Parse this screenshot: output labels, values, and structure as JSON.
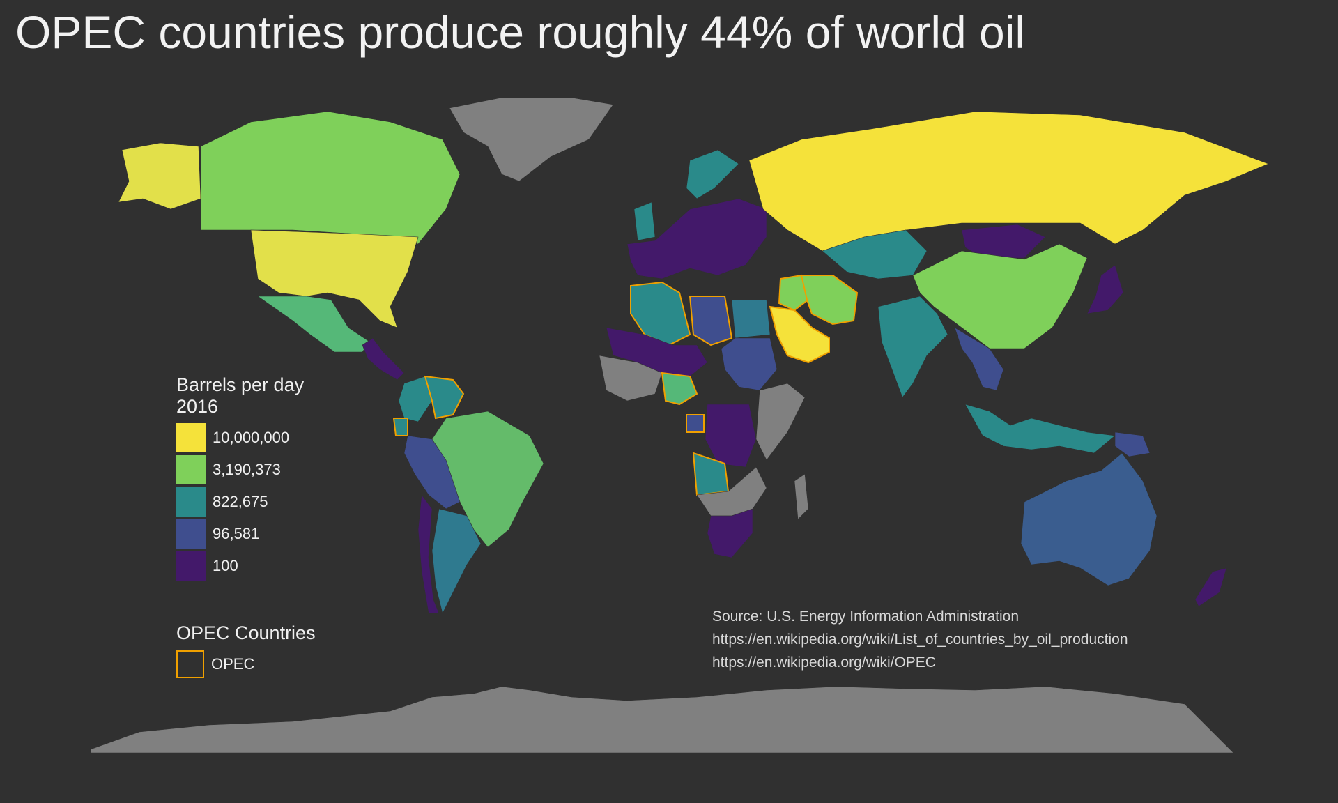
{
  "title": "OPEC countries produce roughly 44% of world oil",
  "colors": {
    "background": "#303030",
    "no_data": "#808080",
    "opec_outline": "#f0a000",
    "scale": [
      "#f5e23a",
      "#7fd05a",
      "#2a8a8a",
      "#3f4e8e",
      "#43196a"
    ]
  },
  "legend": {
    "title_line1": "Barrels per day",
    "title_line2": "2016",
    "items": [
      {
        "label": "10,000,000",
        "color": "#f5e23a"
      },
      {
        "label": "3,190,373",
        "color": "#7fd05a"
      },
      {
        "label": "822,675",
        "color": "#2a8a8a"
      },
      {
        "label": "96,581",
        "color": "#3f4e8e"
      },
      {
        "label": "100",
        "color": "#43196a"
      }
    ]
  },
  "opec_legend": {
    "title": "OPEC Countries",
    "item_label": "OPEC"
  },
  "source": {
    "line1": "Source: U.S. Energy Information Administration",
    "line2": "https://en.wikipedia.org/wiki/List_of_countries_by_oil_production",
    "line3": "https://en.wikipedia.org/wiki/OPEC"
  },
  "regions": [
    {
      "name": "alaska",
      "fill": "#e2e04a",
      "opec": false
    },
    {
      "name": "canada",
      "fill": "#7fd05a",
      "opec": false
    },
    {
      "name": "united-states",
      "fill": "#e2e04a",
      "opec": false
    },
    {
      "name": "mexico",
      "fill": "#55b878",
      "opec": false
    },
    {
      "name": "central-america",
      "fill": "#43196a",
      "opec": false
    },
    {
      "name": "greenland",
      "fill": "#808080",
      "opec": false
    },
    {
      "name": "venezuela",
      "fill": "#2a8a8a",
      "opec": true
    },
    {
      "name": "colombia",
      "fill": "#2a8a8a",
      "opec": false
    },
    {
      "name": "ecuador",
      "fill": "#2a8a8a",
      "opec": true
    },
    {
      "name": "brazil",
      "fill": "#64bb6a",
      "opec": false
    },
    {
      "name": "peru-bolivia",
      "fill": "#3f4e8e",
      "opec": false
    },
    {
      "name": "argentina",
      "fill": "#2f7a8f",
      "opec": false
    },
    {
      "name": "chile",
      "fill": "#43196a",
      "opec": false
    },
    {
      "name": "uk-norway",
      "fill": "#2a8a8a",
      "opec": false
    },
    {
      "name": "europe",
      "fill": "#43196a",
      "opec": false
    },
    {
      "name": "russia",
      "fill": "#f5e23a",
      "opec": false
    },
    {
      "name": "kazakhstan",
      "fill": "#2a8a8a",
      "opec": false
    },
    {
      "name": "china",
      "fill": "#7fd05a",
      "opec": false
    },
    {
      "name": "mongolia",
      "fill": "#43196a",
      "opec": false
    },
    {
      "name": "india",
      "fill": "#2a8a8a",
      "opec": false
    },
    {
      "name": "southeast-asia",
      "fill": "#3f4e8e",
      "opec": false
    },
    {
      "name": "indonesia",
      "fill": "#2a8a8a",
      "opec": false
    },
    {
      "name": "japan",
      "fill": "#43196a",
      "opec": false
    },
    {
      "name": "saudi-arabia",
      "fill": "#f5e23a",
      "opec": true
    },
    {
      "name": "iran",
      "fill": "#7fd05a",
      "opec": true
    },
    {
      "name": "iraq",
      "fill": "#7fd05a",
      "opec": true
    },
    {
      "name": "algeria",
      "fill": "#2a8a8a",
      "opec": true
    },
    {
      "name": "libya",
      "fill": "#3f4e8e",
      "opec": true
    },
    {
      "name": "egypt",
      "fill": "#2f7a8f",
      "opec": false
    },
    {
      "name": "nigeria",
      "fill": "#55b878",
      "opec": true
    },
    {
      "name": "angola",
      "fill": "#2a8a8a",
      "opec": true
    },
    {
      "name": "gabon",
      "fill": "#3f4e8e",
      "opec": true
    },
    {
      "name": "sudan",
      "fill": "#3f4e8e",
      "opec": false
    },
    {
      "name": "chad-niger",
      "fill": "#43196a",
      "opec": false
    },
    {
      "name": "west-africa",
      "fill": "#808080",
      "opec": false
    },
    {
      "name": "congo-drc",
      "fill": "#43196a",
      "opec": false
    },
    {
      "name": "east-africa",
      "fill": "#808080",
      "opec": false
    },
    {
      "name": "southern-africa",
      "fill": "#808080",
      "opec": false
    },
    {
      "name": "south-africa",
      "fill": "#43196a",
      "opec": false
    },
    {
      "name": "australia",
      "fill": "#3a5d8f",
      "opec": false
    },
    {
      "name": "papua-new-guinea",
      "fill": "#3f4e8e",
      "opec": false
    },
    {
      "name": "new-zealand",
      "fill": "#43196a",
      "opec": false
    },
    {
      "name": "antarctica",
      "fill": "#808080",
      "opec": false
    }
  ]
}
